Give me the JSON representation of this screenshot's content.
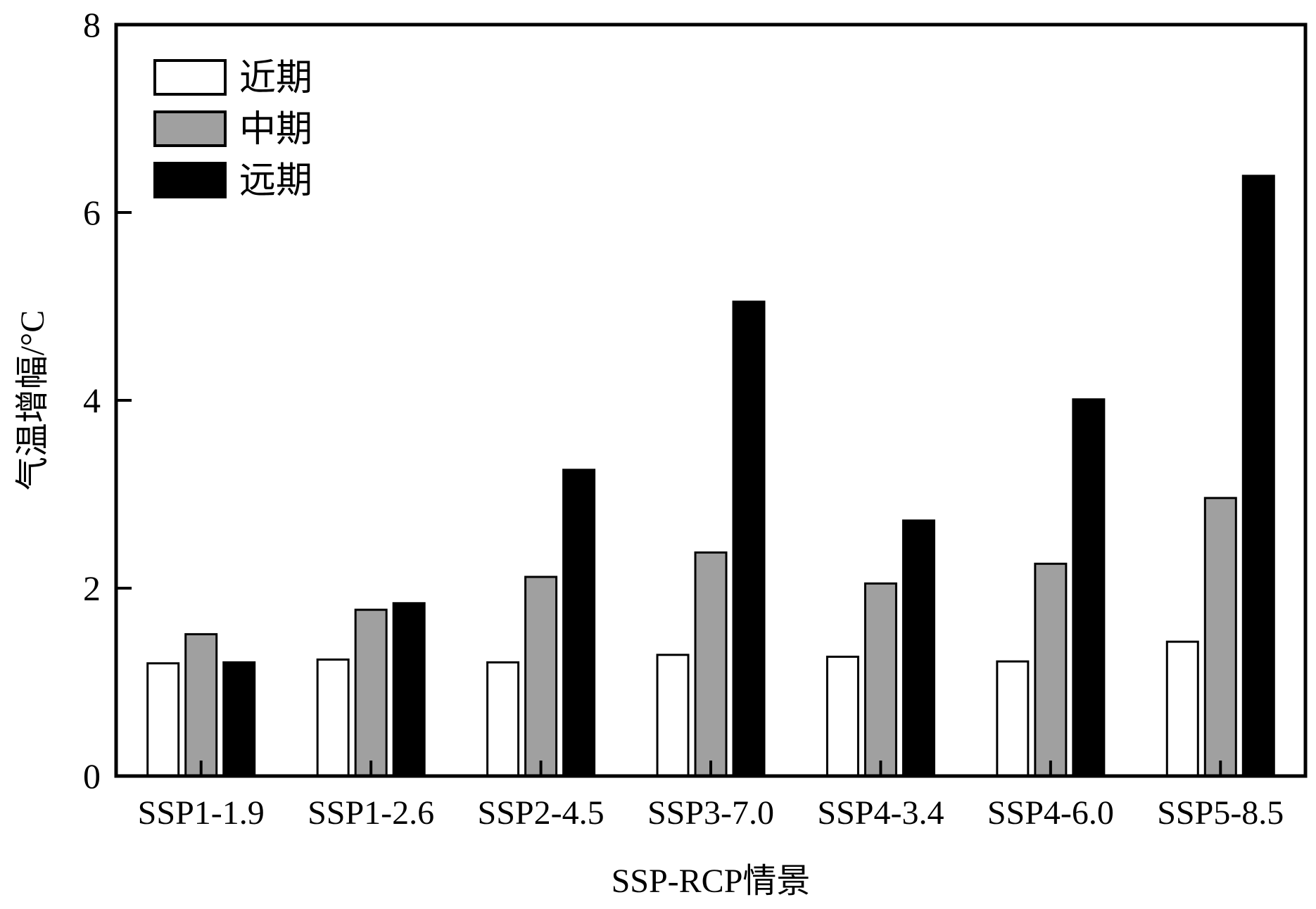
{
  "chart_data": {
    "type": "bar",
    "title": "",
    "xlabel": "SSP-RCP情景",
    "ylabel": "气温增幅/°C",
    "ylim": [
      0,
      8
    ],
    "yticks": [
      0,
      2,
      4,
      6,
      8
    ],
    "grid": false,
    "legend_position": "top-left",
    "categories": [
      "SSP1-1.9",
      "SSP1-2.6",
      "SSP2-4.5",
      "SSP3-7.0",
      "SSP4-3.4",
      "SSP4-6.0",
      "SSP5-8.5"
    ],
    "series": [
      {
        "name": "近期",
        "color": "#ffffff",
        "values": [
          1.2,
          1.24,
          1.21,
          1.29,
          1.27,
          1.22,
          1.43
        ]
      },
      {
        "name": "中期",
        "color": "#a0a0a0",
        "values": [
          1.51,
          1.77,
          2.12,
          2.38,
          2.05,
          2.26,
          2.96
        ]
      },
      {
        "name": "远期",
        "color": "#000000",
        "values": [
          1.21,
          1.84,
          3.26,
          5.05,
          2.72,
          4.01,
          6.39
        ]
      }
    ]
  }
}
